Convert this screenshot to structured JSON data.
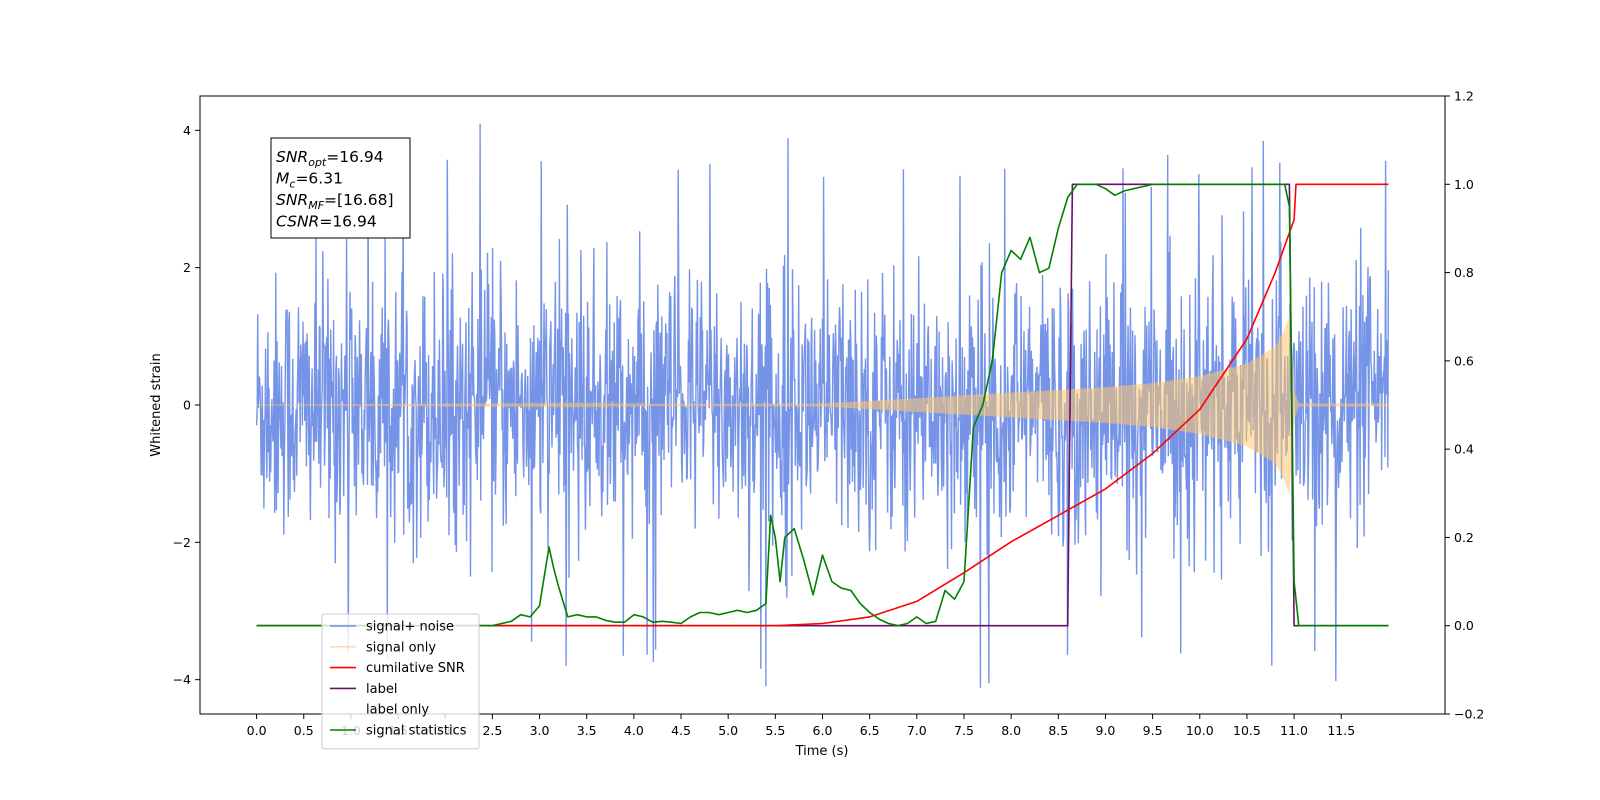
{
  "chart_data": {
    "type": "line",
    "xlabel": "Time (s)",
    "ylabel": "Whitened strain",
    "xlim": [
      -0.6,
      12.6
    ],
    "ylim_left": [
      -4.5,
      4.5
    ],
    "ylim_right": [
      -0.2,
      1.2
    ],
    "x_ticks": [
      0.0,
      0.5,
      1.0,
      1.5,
      2.0,
      2.5,
      3.0,
      3.5,
      4.0,
      4.5,
      5.0,
      5.5,
      6.0,
      6.5,
      7.0,
      7.5,
      8.0,
      8.5,
      9.0,
      9.5,
      10.0,
      10.5,
      11.0,
      11.5
    ],
    "x_tick_labels": [
      "0.0",
      "0.5",
      "1.0",
      "1.5",
      "2.0",
      "2.5",
      "3.0",
      "3.5",
      "4.0",
      "4.5",
      "5.0",
      "5.5",
      "6.0",
      "6.5",
      "7.0",
      "7.5",
      "8.0",
      "8.5",
      "9.0",
      "9.5",
      "10.0",
      "10.5",
      "11.0",
      "11.5"
    ],
    "y_left_ticks": [
      -4,
      -2,
      0,
      2,
      4
    ],
    "y_left_tick_labels": [
      "−4",
      "−2",
      "0",
      "2",
      "4"
    ],
    "y_right_ticks": [
      -0.2,
      0.0,
      0.2,
      0.4,
      0.6,
      0.8,
      1.0,
      1.2
    ],
    "y_right_tick_labels": [
      "−0.2",
      "0.0",
      "0.2",
      "0.4",
      "0.6",
      "0.8",
      "1.0",
      "1.2"
    ],
    "annotation": [
      {
        "base": "SNR",
        "sub": "opt",
        "rest": "=16.94"
      },
      {
        "base": "M",
        "sub": "c",
        "rest": "=6.31"
      },
      {
        "base": "SNR",
        "sub": "MF",
        "rest": "=[16.68]"
      },
      {
        "base": "CSNR",
        "sub": "",
        "rest": "=16.94"
      }
    ],
    "legend_position": "lower-left",
    "legend": [
      {
        "key": "noise",
        "label": "signal+ noise",
        "color": "#6f8ee6"
      },
      {
        "key": "signal",
        "label": "signal only",
        "color": "#ffc66b"
      },
      {
        "key": "csnr",
        "label": "cumilative SNR",
        "color": "#ff0000"
      },
      {
        "key": "label",
        "label": "label",
        "color": "#6a0f6a"
      },
      {
        "key": "label_only",
        "label": "label only",
        "color": "#ffffff"
      },
      {
        "key": "stats",
        "label": "signal statistics",
        "color": "#008000"
      }
    ],
    "series": [
      {
        "name": "signal+ noise",
        "axis": "left",
        "kind": "noise",
        "t_start": 0.0,
        "t_end": 12.0,
        "sigma": 0.95,
        "peak_min": 3.3,
        "peak_max": 4.12
      },
      {
        "name": "signal only",
        "axis": "left",
        "kind": "chirp",
        "t_start": 0.0,
        "t_merge": 10.95,
        "t_end": 12.0,
        "envelope_t": [
          6.0,
          7.0,
          8.0,
          9.0,
          9.5,
          10.0,
          10.5,
          10.8,
          10.9,
          10.95,
          11.0,
          11.05
        ],
        "envelope_a": [
          0.02,
          0.1,
          0.18,
          0.26,
          0.32,
          0.42,
          0.6,
          0.85,
          1.1,
          1.3,
          0.2,
          0.02
        ]
      },
      {
        "name": "cumilative SNR",
        "axis": "right",
        "x": [
          0.0,
          5.5,
          6.0,
          6.5,
          7.0,
          7.5,
          8.0,
          8.5,
          9.0,
          9.5,
          10.0,
          10.5,
          10.8,
          11.0,
          11.02,
          12.0
        ],
        "y": [
          0.0,
          0.0,
          0.005,
          0.02,
          0.055,
          0.12,
          0.19,
          0.25,
          0.31,
          0.39,
          0.49,
          0.65,
          0.8,
          0.92,
          1.0,
          1.0
        ]
      },
      {
        "name": "label",
        "axis": "right",
        "x": [
          0.0,
          8.6,
          8.65,
          10.95,
          11.0,
          12.0
        ],
        "y": [
          0.0,
          0.0,
          1.0,
          1.0,
          0.0,
          0.0
        ]
      },
      {
        "name": "signal statistics",
        "axis": "right",
        "x": [
          0.0,
          2.5,
          2.7,
          2.8,
          2.9,
          3.0,
          3.1,
          3.15,
          3.2,
          3.3,
          3.4,
          3.5,
          3.6,
          3.7,
          3.8,
          3.9,
          4.0,
          4.1,
          4.2,
          4.3,
          4.4,
          4.5,
          4.6,
          4.7,
          4.8,
          4.9,
          5.0,
          5.1,
          5.2,
          5.3,
          5.4,
          5.45,
          5.5,
          5.55,
          5.6,
          5.7,
          5.8,
          5.9,
          6.0,
          6.1,
          6.2,
          6.3,
          6.4,
          6.5,
          6.6,
          6.7,
          6.8,
          6.9,
          7.0,
          7.1,
          7.2,
          7.3,
          7.4,
          7.5,
          7.6,
          7.7,
          7.8,
          7.9,
          8.0,
          8.1,
          8.2,
          8.3,
          8.4,
          8.5,
          8.6,
          8.7,
          8.9,
          9.0,
          9.1,
          9.2,
          9.5,
          10.0,
          10.5,
          10.9,
          10.95,
          11.0,
          11.05,
          11.1,
          12.0
        ],
        "y": [
          0.0,
          0.0,
          0.01,
          0.025,
          0.02,
          0.045,
          0.178,
          0.13,
          0.09,
          0.02,
          0.025,
          0.02,
          0.02,
          0.012,
          0.008,
          0.008,
          0.025,
          0.02,
          0.008,
          0.01,
          0.008,
          0.005,
          0.02,
          0.03,
          0.03,
          0.025,
          0.03,
          0.035,
          0.03,
          0.035,
          0.05,
          0.25,
          0.2,
          0.1,
          0.2,
          0.22,
          0.15,
          0.07,
          0.16,
          0.1,
          0.085,
          0.08,
          0.05,
          0.03,
          0.015,
          0.005,
          0.0,
          0.005,
          0.02,
          0.005,
          0.01,
          0.08,
          0.06,
          0.1,
          0.45,
          0.5,
          0.6,
          0.8,
          0.85,
          0.83,
          0.88,
          0.8,
          0.81,
          0.9,
          0.97,
          1.0,
          1.0,
          0.99,
          0.975,
          0.985,
          1.0,
          1.0,
          1.0,
          1.0,
          0.95,
          0.1,
          0.0,
          0.0,
          0.0
        ]
      }
    ]
  }
}
